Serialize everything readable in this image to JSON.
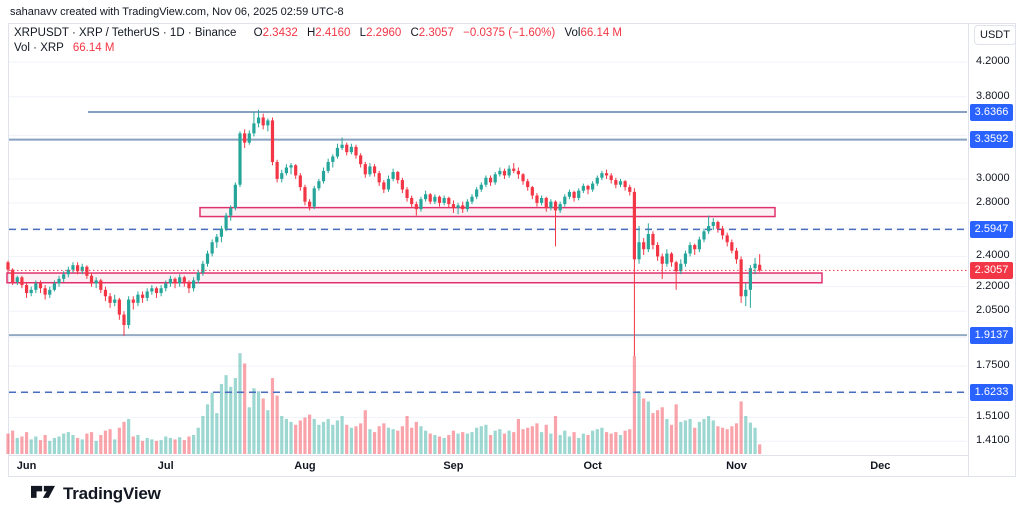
{
  "attribution": "sahanavv created with TradingView.com, Nov 06, 2025 02:59 UTC-8",
  "legend": {
    "symbol_title": "XRPUSDT · XRP / TetherUS · 1D · Binance",
    "ohlc": [
      {
        "k": "O",
        "v": "2.3432"
      },
      {
        "k": "H",
        "v": "2.4160"
      },
      {
        "k": "L",
        "v": "2.2960"
      },
      {
        "k": "C",
        "v": "2.3057"
      }
    ],
    "change": "−0.0375 (−1.60%)",
    "vol_label": "Vol",
    "vol_value": "66.14 M",
    "row2_label": "Vol · XRP",
    "row2_value": "66.14 M"
  },
  "price_axis": {
    "currency": "USDT"
  },
  "footer": {
    "logo_text": "TradingView"
  },
  "chart_data": {
    "type": "candlestick",
    "symbol": "XRPUSDT",
    "pair": "XRP / TetherUS",
    "timeframe": "1D",
    "exchange": "Binance",
    "quote_currency": "USDT",
    "y_scale": "log",
    "ohlc_summary": {
      "open": 2.3432,
      "high": 2.416,
      "low": 2.296,
      "close": 2.3057,
      "change": -0.0375,
      "change_pct": -1.6,
      "volume_m": 66.14
    },
    "y_ticks": [
      {
        "label": "4.2000",
        "price": 4.2
      },
      {
        "label": "3.8000",
        "price": 3.8
      },
      {
        "label": "3.0000",
        "price": 3.0
      },
      {
        "label": "2.8000",
        "price": 2.8
      },
      {
        "label": "2.4000",
        "price": 2.4
      },
      {
        "label": "2.2000",
        "price": 2.2
      },
      {
        "label": "2.0500",
        "price": 2.05
      },
      {
        "label": "1.7500",
        "price": 1.75
      },
      {
        "label": "1.5100",
        "price": 1.51
      },
      {
        "label": "1.4100",
        "price": 1.41
      }
    ],
    "grid_prices": [
      4.2,
      3.8,
      3.4,
      3.0,
      2.8,
      2.6,
      2.4,
      2.2,
      2.05,
      1.9,
      1.75,
      1.62,
      1.51,
      1.41
    ],
    "badges": [
      {
        "label": "3.6366",
        "price": 3.6366,
        "bg": "#2962ff"
      },
      {
        "label": "3.3592",
        "price": 3.3592,
        "bg": "#2962ff"
      },
      {
        "label": "2.5947",
        "price": 2.5947,
        "bg": "#2962ff"
      },
      {
        "label": "2.3057",
        "price": 2.3057,
        "bg": "#f23645"
      },
      {
        "label": "1.9137",
        "price": 1.9137,
        "bg": "#2962ff"
      },
      {
        "label": "1.6233",
        "price": 1.6233,
        "bg": "#2962ff"
      }
    ],
    "levels": [
      {
        "price": 3.6366,
        "style": "solid",
        "color": "#5f80ae",
        "width": 1.5,
        "x1": 88,
        "x2": 967
      },
      {
        "price": 3.3592,
        "style": "solid",
        "color": "#87a0bf",
        "width": 2,
        "x1": 9,
        "x2": 967
      },
      {
        "price": 2.5947,
        "style": "dashed",
        "color": "#4a6dc0",
        "width": 1.5,
        "x1": 9,
        "x2": 967
      },
      {
        "price": 1.9137,
        "style": "solid",
        "color": "#94aac2",
        "width": 2,
        "x1": 9,
        "x2": 967
      },
      {
        "price": 1.6233,
        "style": "dashed",
        "color": "#4a6dc0",
        "width": 1.5,
        "x1": 9,
        "x2": 967
      }
    ],
    "current_price_line": {
      "price": 2.3057,
      "color": "#f23645",
      "style": "dotted"
    },
    "boxes": [
      {
        "price_top": 2.762,
        "price_bottom": 2.692,
        "x1": 200,
        "x2": 775,
        "border": "#e0316e",
        "fill": "rgba(224,49,110,0.07)"
      },
      {
        "price_top": 2.288,
        "price_bottom": 2.225,
        "x1": 7,
        "x2": 822,
        "border": "#e0316e",
        "fill": "rgba(224,49,110,0.07)"
      }
    ],
    "months": [
      {
        "label": "Jun",
        "i": 4
      },
      {
        "label": "Jul",
        "i": 34
      },
      {
        "label": "Aug",
        "i": 64
      },
      {
        "label": "Sep",
        "i": 96
      },
      {
        "label": "Oct",
        "i": 126
      },
      {
        "label": "Nov",
        "i": 157
      },
      {
        "label": "Dec",
        "i": 188
      }
    ],
    "volume_unit": "M",
    "colors": {
      "up": "#26a69a",
      "down": "#f23645",
      "vol_up": "rgba(38,166,154,0.45)",
      "vol_down": "rgba(242,54,69,0.45)",
      "badge_blue": "#2962ff",
      "badge_red": "#f23645",
      "box_pink": "#e0316e",
      "grid": "#f0f3fa",
      "border": "#e0e3eb",
      "text": "#131722"
    },
    "candles": [
      [
        2.36,
        2.37,
        2.29,
        2.31,
        140
      ],
      [
        2.31,
        2.32,
        2.21,
        2.23,
        160
      ],
      [
        2.23,
        2.27,
        2.21,
        2.26,
        110
      ],
      [
        2.26,
        2.27,
        2.19,
        2.21,
        120
      ],
      [
        2.21,
        2.23,
        2.13,
        2.16,
        150
      ],
      [
        2.16,
        2.2,
        2.14,
        2.18,
        100
      ],
      [
        2.18,
        2.24,
        2.16,
        2.22,
        120
      ],
      [
        2.22,
        2.24,
        2.16,
        2.19,
        95
      ],
      [
        2.19,
        2.21,
        2.12,
        2.15,
        130
      ],
      [
        2.15,
        2.2,
        2.13,
        2.18,
        90
      ],
      [
        2.18,
        2.24,
        2.17,
        2.22,
        110
      ],
      [
        2.22,
        2.27,
        2.2,
        2.25,
        120
      ],
      [
        2.25,
        2.3,
        2.23,
        2.28,
        140
      ],
      [
        2.28,
        2.33,
        2.26,
        2.31,
        150
      ],
      [
        2.31,
        2.36,
        2.29,
        2.34,
        130
      ],
      [
        2.34,
        2.36,
        2.28,
        2.3,
        110
      ],
      [
        2.3,
        2.35,
        2.28,
        2.33,
        100
      ],
      [
        2.33,
        2.34,
        2.25,
        2.27,
        140
      ],
      [
        2.27,
        2.29,
        2.2,
        2.22,
        150
      ],
      [
        2.22,
        2.26,
        2.19,
        2.24,
        90
      ],
      [
        2.24,
        2.25,
        2.16,
        2.18,
        130
      ],
      [
        2.18,
        2.2,
        2.11,
        2.14,
        160
      ],
      [
        2.14,
        2.16,
        2.07,
        2.1,
        170
      ],
      [
        2.1,
        2.15,
        2.08,
        2.12,
        100
      ],
      [
        2.12,
        2.13,
        2.0,
        2.03,
        180
      ],
      [
        2.03,
        2.05,
        1.91,
        1.97,
        220
      ],
      [
        1.97,
        2.14,
        1.95,
        2.12,
        240
      ],
      [
        2.12,
        2.14,
        2.06,
        2.1,
        120
      ],
      [
        2.1,
        2.17,
        2.08,
        2.15,
        130
      ],
      [
        2.15,
        2.17,
        2.1,
        2.13,
        90
      ],
      [
        2.13,
        2.19,
        2.11,
        2.17,
        110
      ],
      [
        2.17,
        2.21,
        2.15,
        2.19,
        100
      ],
      [
        2.19,
        2.2,
        2.13,
        2.16,
        90
      ],
      [
        2.16,
        2.21,
        2.14,
        2.19,
        95
      ],
      [
        2.19,
        2.24,
        2.17,
        2.22,
        120
      ],
      [
        2.22,
        2.27,
        2.2,
        2.25,
        110
      ],
      [
        2.25,
        2.26,
        2.19,
        2.22,
        100
      ],
      [
        2.22,
        2.28,
        2.2,
        2.26,
        115
      ],
      [
        2.26,
        2.27,
        2.2,
        2.23,
        95
      ],
      [
        2.23,
        2.24,
        2.16,
        2.19,
        120
      ],
      [
        2.19,
        2.26,
        2.17,
        2.24,
        130
      ],
      [
        2.24,
        2.31,
        2.22,
        2.29,
        180
      ],
      [
        2.29,
        2.37,
        2.27,
        2.35,
        260
      ],
      [
        2.35,
        2.44,
        2.33,
        2.42,
        340
      ],
      [
        2.42,
        2.52,
        2.4,
        2.5,
        420
      ],
      [
        2.5,
        2.56,
        2.46,
        2.54,
        280
      ],
      [
        2.54,
        2.62,
        2.5,
        2.6,
        480
      ],
      [
        2.6,
        2.72,
        2.58,
        2.7,
        540
      ],
      [
        2.7,
        2.78,
        2.66,
        2.76,
        460
      ],
      [
        2.76,
        2.97,
        2.74,
        2.95,
        520
      ],
      [
        2.95,
        3.44,
        2.93,
        3.42,
        690
      ],
      [
        3.42,
        3.46,
        3.28,
        3.33,
        620
      ],
      [
        3.33,
        3.45,
        3.31,
        3.42,
        320
      ],
      [
        3.42,
        3.64,
        3.39,
        3.52,
        450
      ],
      [
        3.52,
        3.66,
        3.48,
        3.58,
        430
      ],
      [
        3.58,
        3.62,
        3.46,
        3.5,
        380
      ],
      [
        3.5,
        3.57,
        3.44,
        3.55,
        300
      ],
      [
        3.55,
        3.58,
        3.12,
        3.15,
        520
      ],
      [
        3.15,
        3.17,
        2.97,
        3.0,
        400
      ],
      [
        3.0,
        3.08,
        2.97,
        3.05,
        260
      ],
      [
        3.05,
        3.13,
        3.03,
        3.1,
        240
      ],
      [
        3.1,
        3.14,
        3.04,
        3.12,
        220
      ],
      [
        3.12,
        3.13,
        3.0,
        3.03,
        200
      ],
      [
        3.03,
        3.05,
        2.9,
        2.93,
        230
      ],
      [
        2.93,
        2.95,
        2.78,
        2.81,
        250
      ],
      [
        2.81,
        2.83,
        2.74,
        2.77,
        270
      ],
      [
        2.77,
        2.94,
        2.75,
        2.92,
        240
      ],
      [
        2.92,
        3.0,
        2.9,
        2.98,
        200
      ],
      [
        2.98,
        3.1,
        2.96,
        3.07,
        220
      ],
      [
        3.07,
        3.18,
        3.05,
        3.15,
        240
      ],
      [
        3.15,
        3.22,
        3.1,
        3.2,
        200
      ],
      [
        3.2,
        3.32,
        3.18,
        3.28,
        230
      ],
      [
        3.28,
        3.38,
        3.26,
        3.31,
        260
      ],
      [
        3.31,
        3.33,
        3.21,
        3.24,
        200
      ],
      [
        3.24,
        3.32,
        3.22,
        3.29,
        180
      ],
      [
        3.29,
        3.31,
        3.18,
        3.21,
        190
      ],
      [
        3.21,
        3.23,
        3.1,
        3.13,
        210
      ],
      [
        3.13,
        3.15,
        3.01,
        3.04,
        300
      ],
      [
        3.04,
        3.14,
        3.02,
        3.11,
        170
      ],
      [
        3.11,
        3.13,
        3.02,
        3.05,
        150
      ],
      [
        3.05,
        3.07,
        2.94,
        2.97,
        190
      ],
      [
        2.97,
        2.99,
        2.88,
        2.91,
        210
      ],
      [
        2.91,
        3.03,
        2.89,
        3.0,
        180
      ],
      [
        3.0,
        3.09,
        2.98,
        3.06,
        170
      ],
      [
        3.06,
        3.07,
        2.96,
        2.99,
        160
      ],
      [
        2.99,
        3.01,
        2.88,
        2.91,
        190
      ],
      [
        2.91,
        2.93,
        2.81,
        2.84,
        260
      ],
      [
        2.84,
        2.86,
        2.76,
        2.79,
        180
      ],
      [
        2.79,
        2.81,
        2.7,
        2.75,
        220
      ],
      [
        2.75,
        2.85,
        2.73,
        2.83,
        190
      ],
      [
        2.83,
        2.9,
        2.81,
        2.87,
        160
      ],
      [
        2.87,
        2.88,
        2.79,
        2.81,
        140
      ],
      [
        2.81,
        2.87,
        2.79,
        2.85,
        130
      ],
      [
        2.85,
        2.86,
        2.77,
        2.8,
        120
      ],
      [
        2.8,
        2.86,
        2.78,
        2.84,
        110
      ],
      [
        2.84,
        2.85,
        2.76,
        2.79,
        130
      ],
      [
        2.79,
        2.82,
        2.72,
        2.76,
        160
      ],
      [
        2.76,
        2.8,
        2.71,
        2.78,
        140
      ],
      [
        2.78,
        2.81,
        2.72,
        2.75,
        150
      ],
      [
        2.75,
        2.83,
        2.73,
        2.81,
        140
      ],
      [
        2.81,
        2.87,
        2.79,
        2.85,
        150
      ],
      [
        2.85,
        2.93,
        2.83,
        2.91,
        180
      ],
      [
        2.91,
        2.97,
        2.89,
        2.95,
        190
      ],
      [
        2.95,
        3.03,
        2.93,
        3.01,
        200
      ],
      [
        3.01,
        3.03,
        2.94,
        2.97,
        130
      ],
      [
        2.97,
        3.06,
        2.95,
        3.04,
        160
      ],
      [
        3.04,
        3.1,
        3.02,
        3.07,
        170
      ],
      [
        3.07,
        3.09,
        3.0,
        3.03,
        140
      ],
      [
        3.03,
        3.12,
        3.01,
        3.09,
        160
      ],
      [
        3.09,
        3.14,
        3.05,
        3.07,
        150
      ],
      [
        3.07,
        3.1,
        3.0,
        3.04,
        240
      ],
      [
        3.04,
        3.05,
        2.95,
        2.98,
        170
      ],
      [
        2.98,
        3.0,
        2.9,
        2.93,
        180
      ],
      [
        2.93,
        2.94,
        2.83,
        2.86,
        190
      ],
      [
        2.86,
        2.88,
        2.77,
        2.8,
        210
      ],
      [
        2.8,
        2.86,
        2.78,
        2.84,
        150
      ],
      [
        2.84,
        2.85,
        2.73,
        2.76,
        200
      ],
      [
        2.76,
        2.83,
        2.74,
        2.81,
        140
      ],
      [
        2.81,
        2.82,
        2.47,
        2.74,
        260
      ],
      [
        2.74,
        2.81,
        2.72,
        2.79,
        130
      ],
      [
        2.79,
        2.87,
        2.77,
        2.85,
        160
      ],
      [
        2.85,
        2.91,
        2.83,
        2.89,
        120
      ],
      [
        2.89,
        2.9,
        2.81,
        2.84,
        150
      ],
      [
        2.84,
        2.92,
        2.82,
        2.9,
        110
      ],
      [
        2.9,
        2.96,
        2.88,
        2.94,
        140
      ],
      [
        2.94,
        2.95,
        2.87,
        2.91,
        130
      ],
      [
        2.91,
        2.98,
        2.89,
        2.96,
        160
      ],
      [
        2.96,
        3.03,
        2.94,
        3.01,
        170
      ],
      [
        3.01,
        3.07,
        2.99,
        3.05,
        180
      ],
      [
        3.05,
        3.08,
        3.0,
        3.03,
        150
      ],
      [
        3.03,
        3.05,
        2.96,
        2.99,
        140
      ],
      [
        2.99,
        3.01,
        2.92,
        2.95,
        150
      ],
      [
        2.95,
        3.0,
        2.93,
        2.98,
        130
      ],
      [
        2.98,
        2.99,
        2.9,
        2.93,
        160
      ],
      [
        2.93,
        2.95,
        2.86,
        2.89,
        170
      ],
      [
        2.89,
        2.92,
        1.8,
        2.38,
        670
      ],
      [
        2.38,
        2.62,
        2.35,
        2.5,
        430
      ],
      [
        2.5,
        2.53,
        2.41,
        2.45,
        380
      ],
      [
        2.45,
        2.64,
        2.43,
        2.56,
        360
      ],
      [
        2.56,
        2.58,
        2.45,
        2.48,
        280
      ],
      [
        2.48,
        2.5,
        2.37,
        2.4,
        300
      ],
      [
        2.4,
        2.42,
        2.25,
        2.35,
        320
      ],
      [
        2.35,
        2.45,
        2.33,
        2.42,
        240
      ],
      [
        2.42,
        2.43,
        2.33,
        2.36,
        200
      ],
      [
        2.36,
        2.37,
        2.18,
        2.3,
        340
      ],
      [
        2.3,
        2.38,
        2.28,
        2.35,
        220
      ],
      [
        2.35,
        2.44,
        2.33,
        2.42,
        230
      ],
      [
        2.42,
        2.5,
        2.4,
        2.48,
        240
      ],
      [
        2.48,
        2.49,
        2.41,
        2.45,
        180
      ],
      [
        2.45,
        2.54,
        2.43,
        2.52,
        220
      ],
      [
        2.52,
        2.6,
        2.5,
        2.58,
        240
      ],
      [
        2.58,
        2.7,
        2.56,
        2.62,
        260
      ],
      [
        2.62,
        2.68,
        2.59,
        2.65,
        230
      ],
      [
        2.65,
        2.66,
        2.57,
        2.6,
        190
      ],
      [
        2.6,
        2.62,
        2.52,
        2.55,
        180
      ],
      [
        2.55,
        2.57,
        2.47,
        2.5,
        170
      ],
      [
        2.5,
        2.52,
        2.42,
        2.44,
        190
      ],
      [
        2.44,
        2.46,
        2.35,
        2.38,
        210
      ],
      [
        2.38,
        2.4,
        2.1,
        2.14,
        360
      ],
      [
        2.14,
        2.22,
        2.08,
        2.18,
        260
      ],
      [
        2.18,
        2.34,
        2.07,
        2.32,
        215
      ],
      [
        2.32,
        2.39,
        2.28,
        2.35,
        180
      ],
      [
        2.3432,
        2.416,
        2.296,
        2.3057,
        66.14
      ]
    ]
  }
}
